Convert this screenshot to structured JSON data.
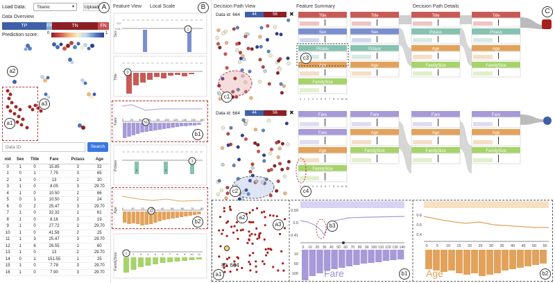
{
  "top": {
    "load_label": "Load Data:",
    "dataset": "Titanic",
    "upload_label": "Upload"
  },
  "overview": {
    "title": "Data Overview",
    "bars": [
      {
        "label": "TP",
        "color": "#3f5fa8"
      },
      {
        "label": "FP",
        "color": "#8aa6d8"
      },
      {
        "label": "TN",
        "color": "#8c1f25"
      },
      {
        "label": "FN",
        "color": "#c85050"
      }
    ],
    "score_label": "Prediction score:",
    "score_min": "0",
    "score_max": "1"
  },
  "search": {
    "placeholder": "Data ID",
    "button": "Search"
  },
  "table": {
    "headers": [
      "nid",
      "Sex",
      "Title",
      "Fare",
      "Pclass",
      "Age"
    ],
    "rows": [
      [
        "0",
        "1",
        "0",
        "15.85",
        "3",
        "32"
      ],
      [
        "1",
        "0",
        "1",
        "7.75",
        "3",
        "65"
      ],
      [
        "2",
        "1",
        "0",
        "13",
        "2",
        "30"
      ],
      [
        "3",
        "1",
        "0",
        "8.05",
        "3",
        "29.70"
      ],
      [
        "4",
        "1",
        "0",
        "10.50",
        "2",
        "66"
      ],
      [
        "5",
        "0",
        "1",
        "10.50",
        "2",
        "24"
      ],
      [
        "6",
        "0",
        "2",
        "25.47",
        "3",
        "29.70"
      ],
      [
        "7",
        "1",
        "0",
        "32.32",
        "1",
        "61"
      ],
      [
        "8",
        "1",
        "0",
        "8.16",
        "3",
        "19"
      ],
      [
        "9",
        "1",
        "0",
        "27.72",
        "1",
        "29.70"
      ],
      [
        "10",
        "1",
        "0",
        "41.58",
        "2",
        "25"
      ],
      [
        "11",
        "1",
        "3",
        "25.47",
        "3",
        "29.70"
      ],
      [
        "12",
        "1",
        "6",
        "26.55",
        "1",
        "60"
      ],
      [
        "13",
        "1",
        "0",
        "13",
        "2",
        "29.70"
      ],
      [
        "14",
        "0",
        "1",
        "151.55",
        "1",
        "25"
      ],
      [
        "15",
        "1",
        "0",
        "7.78",
        "3",
        "29.70"
      ],
      [
        "16",
        "1",
        "0",
        "7.90",
        "3",
        "29.70"
      ]
    ]
  },
  "feature_view": {
    "title": "Feature View",
    "local_scale": "Local Scale",
    "features": [
      "Sex",
      "Title",
      "Fare",
      "Pclass",
      "Age",
      "FamilySize"
    ],
    "sex_ticks": [
      "0.2",
      "0.01"
    ],
    "fare_ticks": [
      "0",
      "20",
      "40",
      "60",
      "80",
      "100",
      "120",
      "140",
      "160",
      "180"
    ],
    "age_ticks": [
      "0",
      "10",
      "20",
      "30",
      "40",
      "50",
      "60",
      "70",
      "80"
    ],
    "fs_ticks": [
      "1",
      "2",
      "3",
      "4",
      "5",
      "6",
      "7",
      "8",
      "9",
      "10",
      "11"
    ],
    "fare_marker": "56",
    "age_marker": "32",
    "sex_markers": [
      "0",
      "1"
    ],
    "pclass_markers": [
      "1",
      "2",
      "3"
    ],
    "title_marker": "0",
    "fs_marker": "1"
  },
  "dp_view": {
    "title": "Decision Path View",
    "summary_title": "Feature Summary",
    "details_title": "Decision Path Details",
    "data_id_1": "Data id: 664",
    "data_id_2": "Data id: 664",
    "count_left": "44",
    "count_right": "56",
    "count_left2": "44",
    "count_right2": "56",
    "summary_1": [
      "Title",
      "Sex",
      "Pclass",
      "Age",
      "FamilySize"
    ],
    "summary_2": [
      "Fare",
      "Fare",
      "Age",
      "FamilySize"
    ],
    "path_cols_1": [
      [
        "Title",
        "Sex",
        "Pclass",
        "Age"
      ],
      [
        "Title",
        "Pclass",
        "Age",
        "FamilySize"
      ],
      [
        "Title",
        "Pclass",
        "Age",
        "FamilySize"
      ]
    ],
    "path_cols_2": [
      [
        "Fare",
        "Age",
        "FamilySize"
      ],
      [
        "Fare",
        "Age",
        "FamilySize"
      ],
      [
        "Fare",
        "Age",
        "FamilySize"
      ]
    ],
    "axis_ticks": [
      "0",
      "1",
      "2",
      "3",
      "4",
      "5",
      "6",
      "7",
      "8",
      "9",
      "10",
      "11"
    ]
  },
  "zoom": {
    "id_label": "ID: 664",
    "fare_label": "Fare",
    "age_label": "Age",
    "fare_ticks": [
      "0",
      "10",
      "20",
      "30",
      "40",
      "50",
      "60",
      "70",
      "80",
      "90",
      "100",
      "110",
      "120",
      "130",
      "140"
    ],
    "age_ticks": [
      "0",
      "5",
      "10",
      "15",
      "20",
      "25",
      "30",
      "35",
      "40",
      "45",
      "50",
      "55"
    ],
    "fare_y": [
      "0.59",
      "0.5",
      "0.41"
    ],
    "age_y": [
      "0.6",
      "0.5",
      "0.4"
    ],
    "hist_y": [
      "10",
      "50",
      "100"
    ]
  },
  "callouts": {
    "A": "A",
    "B": "B",
    "C": "C",
    "a1": "a1",
    "a2": "a2",
    "a3": "a3",
    "b1": "b1",
    "b2": "b2",
    "b3": "b3",
    "c1": "c1",
    "c2": "c2",
    "c3": "c3",
    "c4": "c4"
  },
  "colors": {
    "title": "#c85a55",
    "sex": "#7b8fd0",
    "pclass": "#86c2b0",
    "age": "#e3a25b",
    "familysize": "#a6d36a",
    "fare": "#a79ad8",
    "tp": "#3f5fa8",
    "tn": "#8c1f25"
  }
}
